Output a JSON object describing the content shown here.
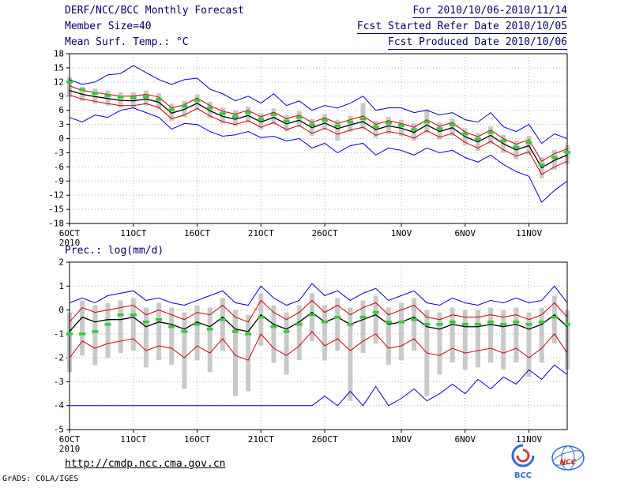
{
  "header": {
    "left": [
      "DERF/NCC/BCC Monthly Forecast",
      "Member Size=40",
      "Mean Surf. Temp.: °C"
    ],
    "right": [
      "For 2010/10/06-2010/11/14",
      "Fcst Started Refer Date 2010/10/05",
      "Fcst Produced Date 2010/10/06"
    ]
  },
  "footer": {
    "url": "http://cmdp.ncc.cma.gov.cn",
    "credit": "GrADS: COLA/IGES",
    "logos": [
      {
        "label": "BCC"
      },
      {
        "label": "NCC"
      }
    ]
  },
  "colors": {
    "header_text": "#000066",
    "ensemble_extreme": "#0000cc",
    "quartile": "#cc0000",
    "ensemble_mean": "#000000",
    "observation": "#33cc33",
    "spread_bar": "#c9c9c9",
    "grid": "#b4b4b4"
  },
  "chart_data": [
    {
      "type": "line",
      "title": "Mean Surf. Temp.: °C",
      "ylabel": "°C",
      "ylim": [
        -18,
        18
      ],
      "yticks": [
        18,
        15,
        12,
        9,
        6,
        3,
        0,
        -3,
        -6,
        -9,
        -12,
        -15,
        -18
      ],
      "x_start": "2010/10/06",
      "x_end": "2010/11/14",
      "grid": "dotted",
      "xticks": [
        {
          "index": 0,
          "label": "6OCT",
          "sublabel": "2010"
        },
        {
          "index": 5,
          "label": "11OCT"
        },
        {
          "index": 10,
          "label": "16OCT"
        },
        {
          "index": 15,
          "label": "21OCT"
        },
        {
          "index": 20,
          "label": "26OCT"
        },
        {
          "index": 26,
          "label": "1NOV"
        },
        {
          "index": 31,
          "label": "6NOV"
        },
        {
          "index": 36,
          "label": "11NOV"
        }
      ],
      "series": [
        {
          "name": "ensemble-max",
          "color": "#0000cc",
          "width": 1,
          "values": [
            12.5,
            11.5,
            12.0,
            13.5,
            13.8,
            15.5,
            14.0,
            12.5,
            11.5,
            12.5,
            12.8,
            10.5,
            9.5,
            8.0,
            9.0,
            7.5,
            9.5,
            7.0,
            8.0,
            6.0,
            7.0,
            6.5,
            7.5,
            9.0,
            6.0,
            6.5,
            6.5,
            5.5,
            6.0,
            5.0,
            5.5,
            4.0,
            3.5,
            5.5,
            2.5,
            1.5,
            3.0,
            -1.0,
            1.0,
            0.0
          ]
        },
        {
          "name": "upper-quartile",
          "color": "#cc0000",
          "width": 1,
          "values": [
            11.2,
            10.2,
            9.8,
            9.4,
            9.0,
            9.0,
            9.4,
            8.8,
            6.5,
            7.2,
            8.6,
            7.0,
            5.8,
            5.2,
            6.0,
            4.6,
            5.6,
            4.2,
            5.0,
            3.4,
            4.4,
            3.2,
            4.0,
            4.8,
            3.0,
            3.8,
            3.2,
            2.4,
            4.0,
            2.6,
            3.4,
            1.4,
            0.4,
            1.8,
            0.0,
            -1.2,
            -0.2,
            -4.8,
            -3.2,
            -2.2
          ]
        },
        {
          "name": "ensemble-mean",
          "color": "#000000",
          "width": 1.3,
          "values": [
            10.2,
            9.4,
            8.9,
            8.5,
            8.1,
            8.0,
            8.4,
            7.7,
            5.4,
            6.2,
            7.5,
            5.9,
            4.7,
            4.1,
            4.9,
            3.5,
            4.5,
            3.1,
            3.9,
            2.3,
            3.3,
            2.1,
            2.9,
            3.6,
            1.9,
            2.7,
            2.2,
            1.3,
            2.9,
            1.5,
            2.3,
            0.4,
            -0.7,
            0.7,
            -1.1,
            -2.4,
            -1.5,
            -6.2,
            -4.6,
            -3.5
          ]
        },
        {
          "name": "lower-quartile",
          "color": "#cc0000",
          "width": 1,
          "values": [
            9.2,
            8.4,
            7.9,
            7.4,
            7.0,
            7.0,
            7.4,
            6.6,
            4.2,
            5.0,
            6.4,
            4.8,
            3.6,
            3.0,
            3.8,
            2.4,
            3.4,
            1.9,
            2.8,
            1.1,
            2.2,
            0.9,
            1.8,
            2.4,
            0.7,
            1.5,
            1.0,
            0.1,
            1.7,
            0.3,
            1.1,
            -0.8,
            -2.0,
            -0.6,
            -2.4,
            -3.7,
            -2.8,
            -7.6,
            -6.0,
            -4.8
          ]
        },
        {
          "name": "ensemble-min",
          "color": "#0000cc",
          "width": 1,
          "values": [
            4.5,
            3.5,
            5.0,
            4.5,
            6.0,
            6.5,
            5.5,
            4.5,
            2.0,
            3.2,
            3.0,
            1.5,
            0.5,
            0.8,
            1.5,
            0.2,
            0.5,
            -0.5,
            0.0,
            -2.0,
            -1.0,
            -3.0,
            -1.5,
            -1.0,
            -3.5,
            -2.0,
            -2.5,
            -3.5,
            -2.0,
            -3.0,
            -2.5,
            -4.0,
            -5.0,
            -3.5,
            -5.5,
            -7.0,
            -8.0,
            -13.5,
            -11.0,
            -9.0
          ]
        },
        {
          "name": "observation",
          "color": "#33cc33",
          "style": "dash-markers",
          "width": 3.5,
          "values": [
            12.0,
            10.4,
            9.6,
            9.1,
            8.8,
            8.6,
            8.9,
            8.3,
            6.1,
            6.9,
            8.1,
            6.5,
            5.3,
            4.7,
            5.5,
            4.1,
            5.1,
            3.7,
            4.5,
            2.9,
            3.9,
            2.7,
            3.5,
            4.2,
            2.5,
            3.3,
            2.8,
            1.9,
            3.5,
            2.1,
            2.9,
            1.0,
            -0.1,
            1.3,
            -0.5,
            -1.8,
            -0.9,
            -5.6,
            -4.0,
            -2.9
          ]
        }
      ],
      "spread_bars": {
        "color": "#c9c9c9",
        "low": [
          8.8,
          8.0,
          7.4,
          7.0,
          6.6,
          6.5,
          7.0,
          6.2,
          3.8,
          4.6,
          6.0,
          4.4,
          3.2,
          2.6,
          3.4,
          2.0,
          3.0,
          1.5,
          2.4,
          0.6,
          1.8,
          -0.5,
          1.4,
          2.0,
          0.2,
          1.0,
          0.5,
          -0.4,
          1.2,
          -0.2,
          0.6,
          -1.4,
          -2.6,
          -1.2,
          -3.0,
          -4.4,
          -3.4,
          -8.4,
          -6.6,
          -5.4
        ],
        "high": [
          13.0,
          11.0,
          10.6,
          10.2,
          9.8,
          9.8,
          10.2,
          9.6,
          7.4,
          8.0,
          9.4,
          7.8,
          6.6,
          6.0,
          6.8,
          5.4,
          6.4,
          5.0,
          5.8,
          4.2,
          5.2,
          4.0,
          4.8,
          7.5,
          3.8,
          4.6,
          4.0,
          3.2,
          6.2,
          3.4,
          4.2,
          2.2,
          1.2,
          2.6,
          0.8,
          -0.4,
          0.6,
          -4.0,
          -2.4,
          -1.4
        ]
      }
    },
    {
      "type": "line",
      "title": "Prec.: log(mm/d)",
      "ylabel": "log(mm/d)",
      "ylim": [
        -5,
        2
      ],
      "yticks": [
        2,
        1,
        0,
        -1,
        -2,
        -3,
        -4,
        -5
      ],
      "x_start": "2010/10/06",
      "x_end": "2010/11/14",
      "grid": "dotted",
      "xticks": [
        {
          "index": 0,
          "label": "6OCT",
          "sublabel": "2010"
        },
        {
          "index": 5,
          "label": "11OCT"
        },
        {
          "index": 10,
          "label": "16OCT"
        },
        {
          "index": 15,
          "label": "21OCT"
        },
        {
          "index": 20,
          "label": "26OCT"
        },
        {
          "index": 26,
          "label": "1NOV"
        },
        {
          "index": 31,
          "label": "6NOV"
        },
        {
          "index": 36,
          "label": "11NOV"
        }
      ],
      "series": [
        {
          "name": "ensemble-max",
          "color": "#0000cc",
          "width": 1,
          "values": [
            0.3,
            0.5,
            0.3,
            0.6,
            0.7,
            0.8,
            0.4,
            0.5,
            0.3,
            0.2,
            0.4,
            0.6,
            0.8,
            0.3,
            0.2,
            1.0,
            0.5,
            0.2,
            0.4,
            1.1,
            0.6,
            0.8,
            0.4,
            0.7,
            0.9,
            0.4,
            0.6,
            0.8,
            0.3,
            0.2,
            0.5,
            0.3,
            0.2,
            0.4,
            0.3,
            0.5,
            0.3,
            0.4,
            1.0,
            0.3
          ]
        },
        {
          "name": "upper-quartile",
          "color": "#cc0000",
          "width": 1,
          "values": [
            -0.5,
            0.1,
            -0.1,
            0.0,
            0.1,
            0.2,
            -0.2,
            0.0,
            -0.2,
            -0.4,
            -0.1,
            -0.2,
            0.2,
            -0.3,
            -0.5,
            0.4,
            -0.1,
            -0.4,
            -0.1,
            0.4,
            -0.1,
            0.2,
            -0.2,
            0.1,
            0.3,
            -0.2,
            0.0,
            0.2,
            -0.3,
            -0.4,
            -0.2,
            -0.3,
            -0.3,
            -0.2,
            -0.3,
            -0.2,
            -0.4,
            -0.2,
            0.3,
            -0.3
          ]
        },
        {
          "name": "ensemble-mean",
          "color": "#000000",
          "width": 1.3,
          "values": [
            -0.9,
            -0.3,
            -0.5,
            -0.4,
            -0.4,
            -0.3,
            -0.7,
            -0.5,
            -0.6,
            -0.8,
            -0.5,
            -0.7,
            -0.3,
            -0.8,
            -0.9,
            -0.2,
            -0.6,
            -0.8,
            -0.5,
            -0.1,
            -0.5,
            -0.3,
            -0.6,
            -0.4,
            -0.2,
            -0.6,
            -0.5,
            -0.3,
            -0.7,
            -0.8,
            -0.6,
            -0.7,
            -0.7,
            -0.6,
            -0.7,
            -0.6,
            -0.8,
            -0.6,
            -0.2,
            -0.7
          ]
        },
        {
          "name": "lower-quartile",
          "color": "#cc0000",
          "width": 1,
          "values": [
            -2.0,
            -1.3,
            -1.6,
            -1.4,
            -1.3,
            -1.2,
            -1.7,
            -1.5,
            -1.6,
            -2.0,
            -1.5,
            -1.8,
            -1.2,
            -1.9,
            -2.1,
            -1.0,
            -1.6,
            -1.9,
            -1.5,
            -0.9,
            -1.5,
            -1.2,
            -1.7,
            -1.3,
            -1.0,
            -1.6,
            -1.5,
            -1.2,
            -1.8,
            -1.9,
            -1.6,
            -1.8,
            -1.7,
            -1.6,
            -1.8,
            -1.6,
            -2.0,
            -1.6,
            -1.0,
            -1.8
          ]
        },
        {
          "name": "ensemble-min",
          "color": "#0000cc",
          "width": 1,
          "values": [
            -4.0,
            -4.0,
            -4.0,
            -4.0,
            -4.0,
            -4.0,
            -4.0,
            -4.0,
            -4.0,
            -4.0,
            -4.0,
            -4.0,
            -4.0,
            -4.0,
            -4.0,
            -4.0,
            -4.0,
            -4.0,
            -4.0,
            -4.0,
            -3.6,
            -4.0,
            -3.4,
            -4.0,
            -3.2,
            -4.0,
            -3.7,
            -3.3,
            -3.8,
            -3.5,
            -3.1,
            -3.5,
            -2.9,
            -3.3,
            -2.8,
            -3.1,
            -2.5,
            -2.9,
            -2.3,
            -2.7
          ]
        },
        {
          "name": "observation",
          "color": "#33cc33",
          "style": "dash-markers",
          "width": 3.5,
          "values": [
            -1.0,
            -1.0,
            -0.9,
            -0.6,
            -0.2,
            -0.2,
            -0.5,
            -0.4,
            -0.7,
            -0.9,
            -0.6,
            -0.8,
            -0.4,
            -0.9,
            -1.0,
            -0.3,
            -0.7,
            -0.9,
            -0.6,
            -0.2,
            -0.5,
            -0.3,
            -0.6,
            -0.3,
            -0.1,
            -0.5,
            -0.5,
            -0.4,
            -0.6,
            -0.6,
            -0.5,
            -0.6,
            -0.6,
            -0.5,
            -0.6,
            -0.5,
            -0.6,
            -0.5,
            -0.3,
            -0.6
          ]
        }
      ],
      "spread_bars": {
        "color": "#c9c9c9",
        "low": [
          -2.6,
          -1.9,
          -2.3,
          -2.0,
          -1.8,
          -1.7,
          -2.4,
          -2.1,
          -2.3,
          -3.3,
          -2.1,
          -2.6,
          -1.7,
          -3.6,
          -3.4,
          -1.5,
          -2.2,
          -2.7,
          -2.1,
          -1.3,
          -2.1,
          -1.7,
          -3.8,
          -1.8,
          -1.4,
          -2.3,
          -2.1,
          -1.7,
          -3.6,
          -2.7,
          -2.2,
          -2.5,
          -2.4,
          -2.2,
          -2.5,
          -2.2,
          -2.8,
          -2.2,
          -1.4,
          -2.5
        ],
        "high": [
          -0.1,
          0.4,
          0.2,
          0.3,
          0.4,
          0.5,
          0.1,
          0.3,
          0.1,
          -0.1,
          0.2,
          0.1,
          0.5,
          0.0,
          -0.2,
          0.7,
          0.2,
          -0.1,
          0.2,
          0.7,
          0.2,
          0.5,
          0.1,
          0.4,
          0.6,
          0.1,
          0.3,
          0.5,
          0.0,
          -0.1,
          0.1,
          0.0,
          0.0,
          0.1,
          0.0,
          0.1,
          -0.1,
          0.1,
          0.6,
          0.0
        ]
      }
    }
  ]
}
